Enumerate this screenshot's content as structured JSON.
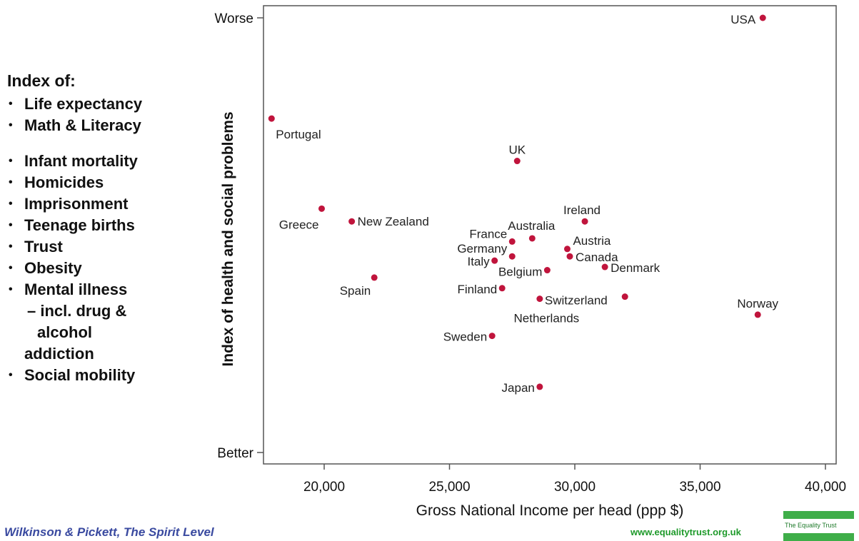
{
  "index_panel": {
    "title": "Index of:",
    "items": [
      {
        "text": "Life expectancy",
        "kind": "bullet"
      },
      {
        "text": "Math & Literacy",
        "kind": "bullet"
      },
      {
        "text": "",
        "kind": "spacer"
      },
      {
        "text": "Infant mortality",
        "kind": "bullet"
      },
      {
        "text": "Homicides",
        "kind": "bullet"
      },
      {
        "text": "Imprisonment",
        "kind": "bullet"
      },
      {
        "text": "Teenage births",
        "kind": "bullet"
      },
      {
        "text": "Trust",
        "kind": "bullet"
      },
      {
        "text": "Obesity",
        "kind": "bullet"
      },
      {
        "text": "Mental illness",
        "kind": "bullet"
      },
      {
        "text": "– incl. drug &",
        "kind": "cont"
      },
      {
        "text": "alcohol",
        "kind": "cont2"
      },
      {
        "text": "addiction",
        "kind": "cont3"
      },
      {
        "text": "Social mobility",
        "kind": "bullet"
      }
    ]
  },
  "chart_data": {
    "type": "scatter",
    "title": "",
    "xlabel": "Gross National Income per head (ppp $)",
    "ylabel": "Index of health and social problems",
    "xlim": [
      17800,
      40000
    ],
    "ylim": [
      -2.2,
      2.2
    ],
    "x_ticks": [
      20000,
      25000,
      30000,
      35000,
      40000
    ],
    "x_tick_labels": [
      "20,000",
      "25,000",
      "30,000",
      "35,000",
      "40,000"
    ],
    "y_ticks": [
      2.05,
      -2.05
    ],
    "y_tick_labels": [
      "Worse",
      "Better"
    ],
    "grid": false,
    "point_color": "#c0143c",
    "points": [
      {
        "label": "USA",
        "x": 37500,
        "y": 2.05,
        "anchor": "end",
        "dx": -10,
        "dy": 8
      },
      {
        "label": "Portugal",
        "x": 17900,
        "y": 1.1,
        "anchor": "start",
        "dx": 6,
        "dy": 28
      },
      {
        "label": "UK",
        "x": 27700,
        "y": 0.7,
        "anchor": "middle",
        "dx": 0,
        "dy": -10
      },
      {
        "label": "Greece",
        "x": 19900,
        "y": 0.25,
        "anchor": "end",
        "dx": -4,
        "dy": 28
      },
      {
        "label": "New Zealand",
        "x": 21100,
        "y": 0.13,
        "anchor": "start",
        "dx": 8,
        "dy": 6
      },
      {
        "label": "Ireland",
        "x": 30400,
        "y": 0.13,
        "anchor": "start",
        "dx": -30,
        "dy": -10
      },
      {
        "label": "Australia",
        "x": 28300,
        "y": -0.03,
        "anchor": "middle",
        "dx": -1,
        "dy": -12
      },
      {
        "label": "France",
        "x": 27500,
        "y": -0.06,
        "anchor": "end",
        "dx": -7,
        "dy": -5
      },
      {
        "label": "Austria",
        "x": 29700,
        "y": -0.13,
        "anchor": "start",
        "dx": 8,
        "dy": -6
      },
      {
        "label": "Germany",
        "x": 27500,
        "y": -0.2,
        "anchor": "end",
        "dx": -7,
        "dy": -5
      },
      {
        "label": "Canada",
        "x": 29800,
        "y": -0.2,
        "anchor": "start",
        "dx": 8,
        "dy": 7
      },
      {
        "label": "Italy",
        "x": 26800,
        "y": -0.24,
        "anchor": "end",
        "dx": -7,
        "dy": 7
      },
      {
        "label": "Denmark",
        "x": 31200,
        "y": -0.3,
        "anchor": "start",
        "dx": 8,
        "dy": 7
      },
      {
        "label": "Belgium",
        "x": 28900,
        "y": -0.33,
        "anchor": "end",
        "dx": -7,
        "dy": 8
      },
      {
        "label": "Spain",
        "x": 22000,
        "y": -0.4,
        "anchor": "end",
        "dx": -5,
        "dy": 24
      },
      {
        "label": "Finland",
        "x": 27100,
        "y": -0.5,
        "anchor": "end",
        "dx": -7,
        "dy": 7
      },
      {
        "label": "Switzerland",
        "x": 28600,
        "y": -0.6,
        "anchor": "start",
        "dx": 7,
        "dy": 8
      },
      {
        "label": "Netherlands",
        "x": 32000,
        "y": -0.58,
        "anchor": "end",
        "dx": -64,
        "dy": 36
      },
      {
        "label": "Norway",
        "x": 37300,
        "y": -0.75,
        "anchor": "middle",
        "dx": 0,
        "dy": -10
      },
      {
        "label": "Sweden",
        "x": 26700,
        "y": -0.95,
        "anchor": "end",
        "dx": -7,
        "dy": 7
      },
      {
        "label": "Japan",
        "x": 28600,
        "y": -1.43,
        "anchor": "end",
        "dx": -7,
        "dy": 7
      }
    ]
  },
  "footer": {
    "credit": "Wilkinson & Pickett, The Spirit Level",
    "site": "www.equalitytrust.org.uk",
    "logo_text": "The Equality Trust"
  }
}
